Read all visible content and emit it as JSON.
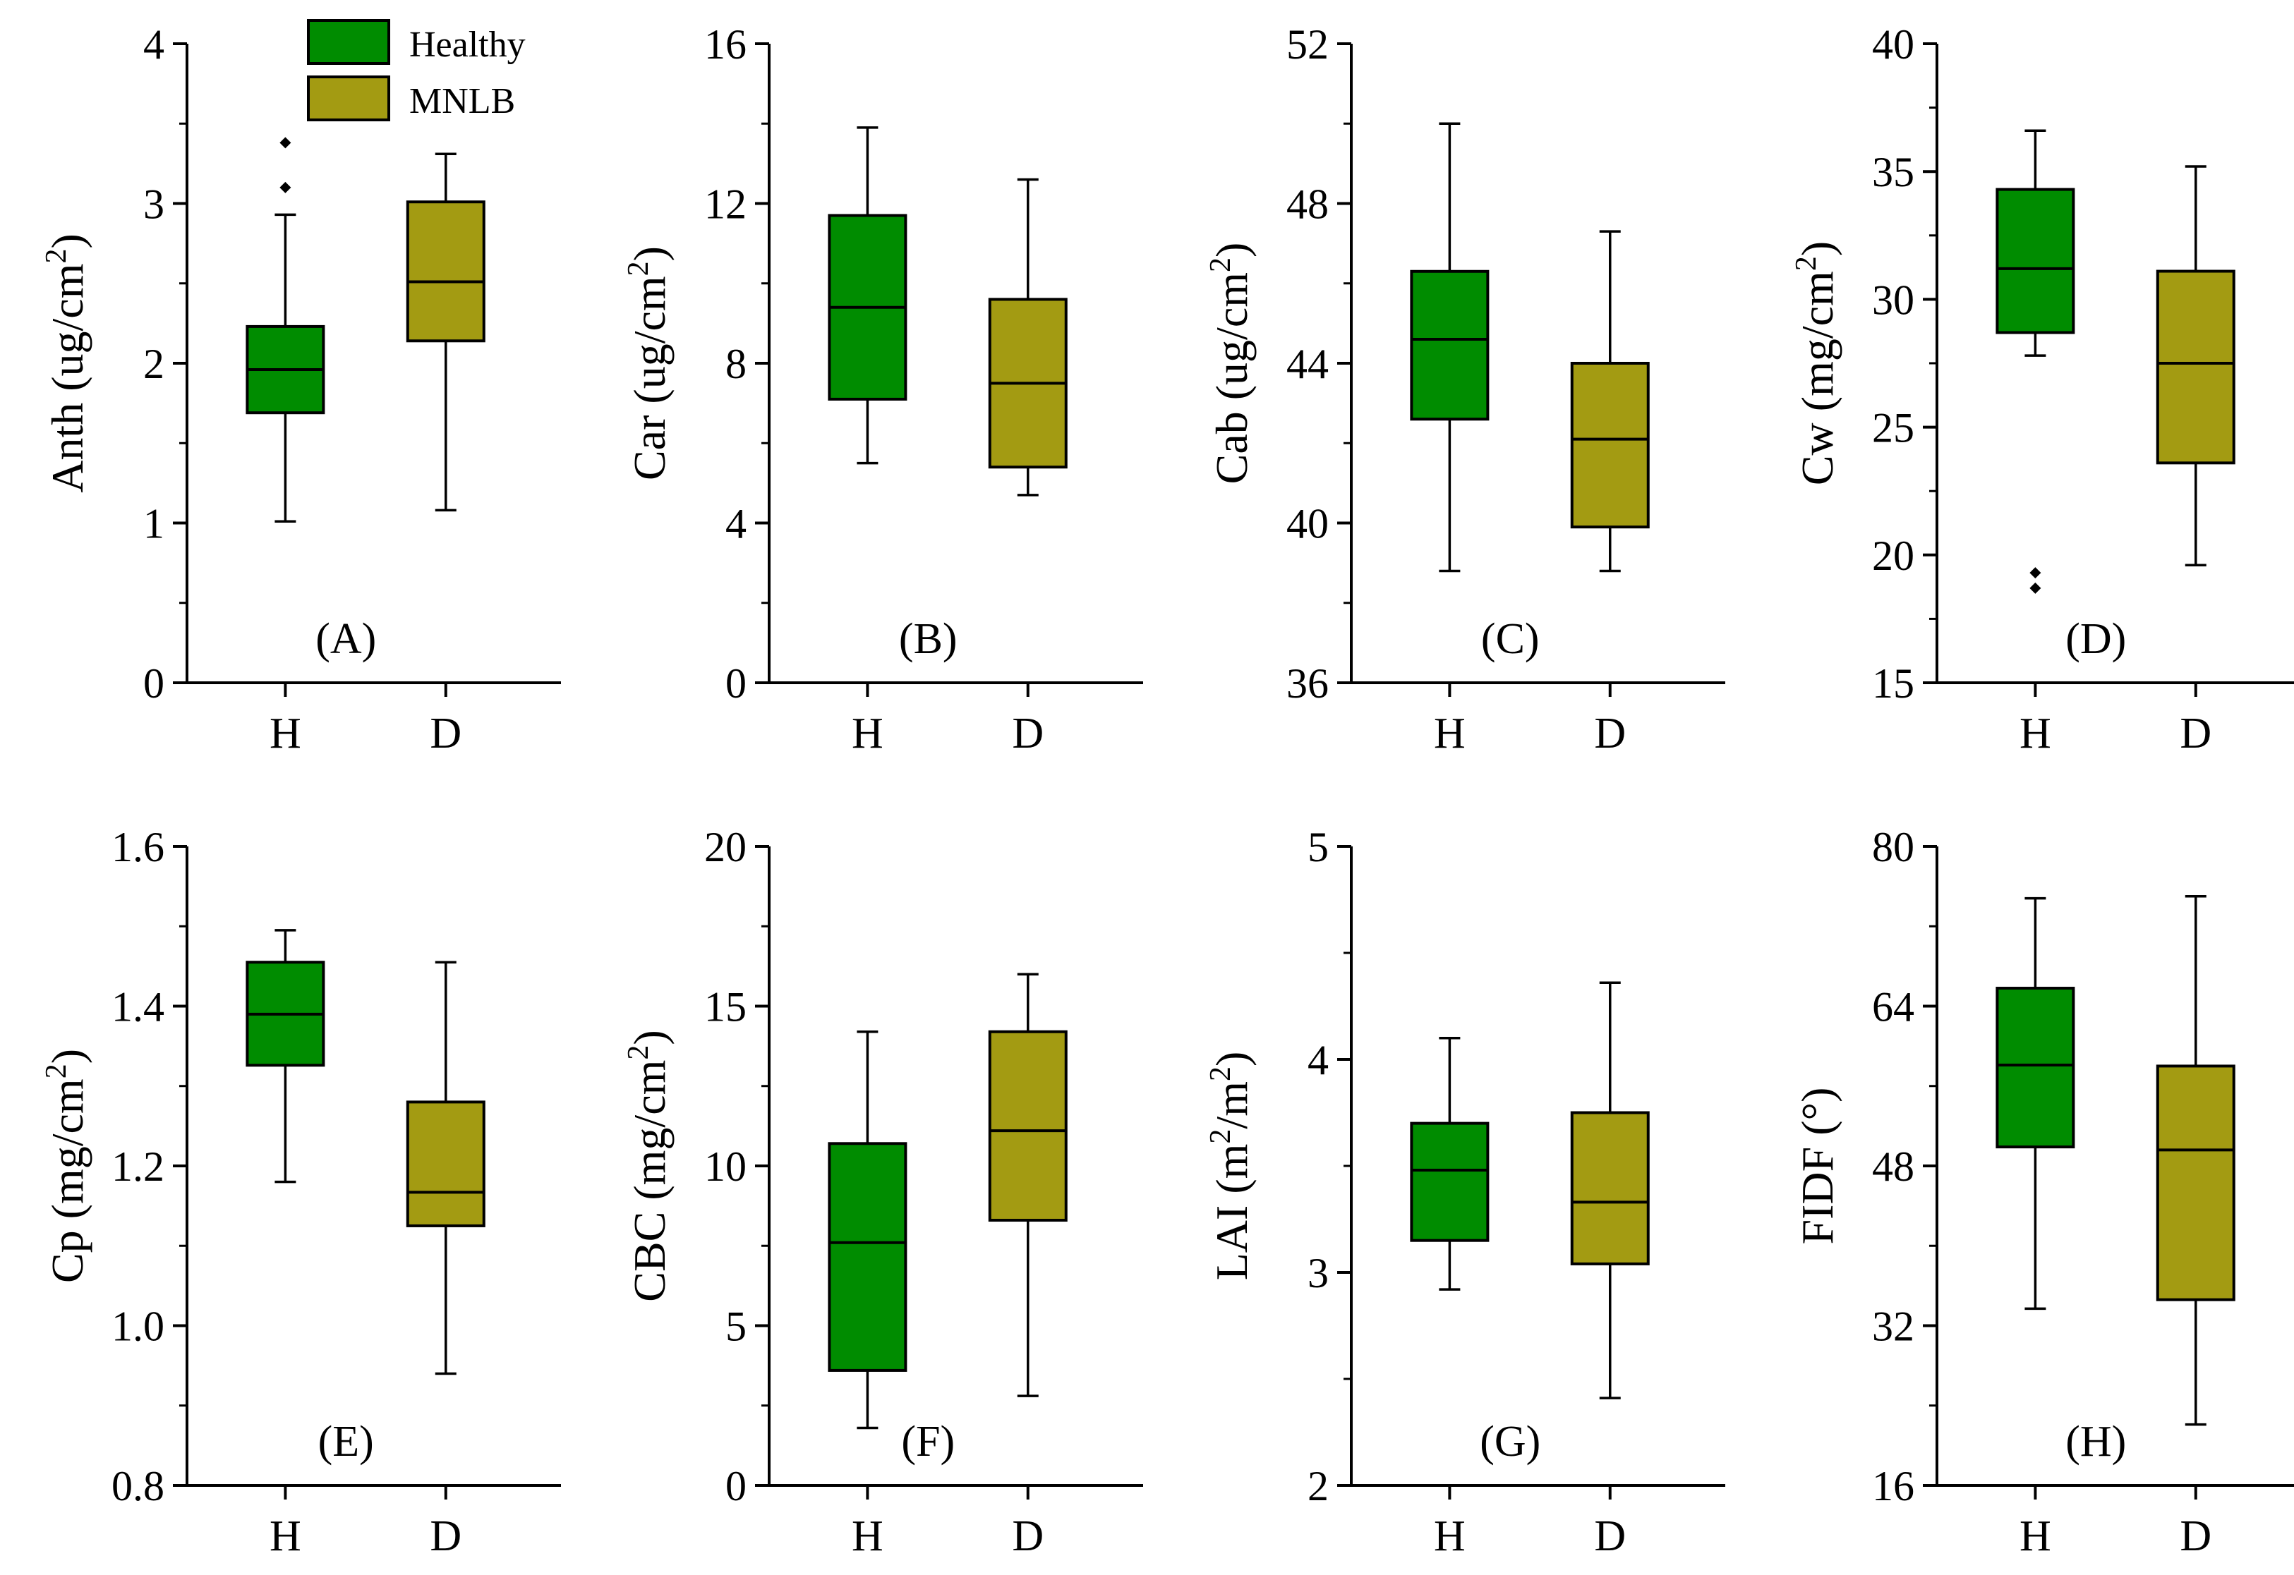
{
  "legend": {
    "entries": [
      {
        "label": "Healthy",
        "color": "#008c00"
      },
      {
        "label": "MNLB",
        "color": "#a39b12"
      }
    ]
  },
  "chart_data": [
    {
      "type": "box",
      "panel": "(A)",
      "ylabel": {
        "main": "Anth (ug/cm",
        "sup": "2",
        "end": ")"
      },
      "ylim": [
        0,
        4
      ],
      "yticks": [
        0,
        1,
        2,
        3,
        4
      ],
      "ytick_labels": [
        "0",
        "1",
        "2",
        "3",
        "4"
      ],
      "categories": [
        "H",
        "D"
      ],
      "boxes": [
        {
          "category": "H",
          "group": "Healthy",
          "min": 1.01,
          "q1": 1.69,
          "median": 1.96,
          "q3": 2.23,
          "max": 2.93,
          "outliers": [
            3.1,
            3.38
          ]
        },
        {
          "category": "D",
          "group": "MNLB",
          "min": 1.08,
          "q1": 2.14,
          "median": 2.51,
          "q3": 3.01,
          "max": 3.31,
          "outliers": []
        }
      ]
    },
    {
      "type": "box",
      "panel": "(B)",
      "ylabel": {
        "main": "Car (ug/cm",
        "sup": "2",
        "end": ")"
      },
      "ylim": [
        0,
        16
      ],
      "yticks": [
        0,
        4,
        8,
        12,
        16
      ],
      "ytick_labels": [
        "0",
        "4",
        "8",
        "12",
        "16"
      ],
      "categories": [
        "H",
        "D"
      ],
      "boxes": [
        {
          "category": "H",
          "group": "Healthy",
          "min": 5.5,
          "q1": 7.1,
          "median": 9.4,
          "q3": 11.7,
          "max": 13.9,
          "outliers": []
        },
        {
          "category": "D",
          "group": "MNLB",
          "min": 4.7,
          "q1": 5.4,
          "median": 7.5,
          "q3": 9.6,
          "max": 12.6,
          "outliers": []
        }
      ]
    },
    {
      "type": "box",
      "panel": "(C)",
      "ylabel": {
        "main": "Cab (ug/cm",
        "sup": "2",
        "end": ")"
      },
      "ylim": [
        36,
        52
      ],
      "yticks": [
        36,
        40,
        44,
        48,
        52
      ],
      "ytick_labels": [
        "36",
        "40",
        "44",
        "48",
        "52"
      ],
      "categories": [
        "H",
        "D"
      ],
      "boxes": [
        {
          "category": "H",
          "group": "Healthy",
          "min": 38.8,
          "q1": 42.6,
          "median": 44.6,
          "q3": 46.3,
          "max": 50.0,
          "outliers": []
        },
        {
          "category": "D",
          "group": "MNLB",
          "min": 38.8,
          "q1": 39.9,
          "median": 42.1,
          "q3": 44.0,
          "max": 47.3,
          "outliers": []
        }
      ]
    },
    {
      "type": "box",
      "panel": "(D)",
      "ylabel": {
        "main": "Cw (mg/cm",
        "sup": "2",
        "end": ")"
      },
      "ylim": [
        15,
        40
      ],
      "yticks": [
        15,
        20,
        25,
        30,
        35,
        40
      ],
      "ytick_labels": [
        "15",
        "20",
        "25",
        "30",
        "35",
        "40"
      ],
      "categories": [
        "H",
        "D"
      ],
      "boxes": [
        {
          "category": "H",
          "group": "Healthy",
          "min": 27.8,
          "q1": 28.7,
          "median": 31.2,
          "q3": 34.3,
          "max": 36.6,
          "outliers": [
            18.7,
            19.3
          ]
        },
        {
          "category": "D",
          "group": "MNLB",
          "min": 19.6,
          "q1": 23.6,
          "median": 27.5,
          "q3": 31.1,
          "max": 35.2,
          "outliers": []
        }
      ]
    },
    {
      "type": "box",
      "panel": "(E)",
      "ylabel": {
        "main": "Cp (mg/cm",
        "sup": "2",
        "end": ")"
      },
      "ylim": [
        0.8,
        1.6
      ],
      "yticks": [
        0.8,
        1.0,
        1.2,
        1.4,
        1.6
      ],
      "ytick_labels": [
        "0.8",
        "1.0",
        "1.2",
        "1.4",
        "1.6"
      ],
      "categories": [
        "H",
        "D"
      ],
      "boxes": [
        {
          "category": "H",
          "group": "Healthy",
          "min": 1.18,
          "q1": 1.326,
          "median": 1.39,
          "q3": 1.455,
          "max": 1.495,
          "outliers": []
        },
        {
          "category": "D",
          "group": "MNLB",
          "min": 0.94,
          "q1": 1.125,
          "median": 1.167,
          "q3": 1.28,
          "max": 1.455,
          "outliers": []
        }
      ]
    },
    {
      "type": "box",
      "panel": "(F)",
      "ylabel": {
        "main": "CBC (mg/cm",
        "sup": "2",
        "end": ")"
      },
      "ylim": [
        0,
        20
      ],
      "yticks": [
        0,
        5,
        10,
        15,
        20
      ],
      "ytick_labels": [
        "0",
        "5",
        "10",
        "15",
        "20"
      ],
      "categories": [
        "H",
        "D"
      ],
      "boxes": [
        {
          "category": "H",
          "group": "Healthy",
          "min": 1.8,
          "q1": 3.6,
          "median": 7.6,
          "q3": 10.7,
          "max": 14.2,
          "outliers": []
        },
        {
          "category": "D",
          "group": "MNLB",
          "min": 2.8,
          "q1": 8.3,
          "median": 11.1,
          "q3": 14.2,
          "max": 16.0,
          "outliers": []
        }
      ]
    },
    {
      "type": "box",
      "panel": "(G)",
      "ylabel": {
        "main": "LAI (m",
        "sup": "2",
        "mid": "/m",
        "sup2": "2",
        "end": ")"
      },
      "ylim": [
        2,
        5
      ],
      "yticks": [
        2,
        3,
        4,
        5
      ],
      "ytick_labels": [
        "2",
        "3",
        "4",
        "5"
      ],
      "categories": [
        "H",
        "D"
      ],
      "boxes": [
        {
          "category": "H",
          "group": "Healthy",
          "min": 2.92,
          "q1": 3.15,
          "median": 3.48,
          "q3": 3.7,
          "max": 4.1,
          "outliers": []
        },
        {
          "category": "D",
          "group": "MNLB",
          "min": 2.41,
          "q1": 3.04,
          "median": 3.33,
          "q3": 3.75,
          "max": 4.36,
          "outliers": []
        }
      ]
    },
    {
      "type": "box",
      "panel": "(H)",
      "ylabel": {
        "main": "FIDF (°)",
        "sup": "",
        "end": ""
      },
      "ylim": [
        16,
        80
      ],
      "yticks": [
        16,
        32,
        48,
        64,
        80
      ],
      "ytick_labels": [
        "16",
        "32",
        "48",
        "64",
        "80"
      ],
      "categories": [
        "H",
        "D"
      ],
      "boxes": [
        {
          "category": "H",
          "group": "Healthy",
          "min": 33.7,
          "q1": 49.9,
          "median": 58.1,
          "q3": 65.8,
          "max": 74.8,
          "outliers": []
        },
        {
          "category": "D",
          "group": "MNLB",
          "min": 22.1,
          "q1": 34.6,
          "median": 49.6,
          "q3": 58.0,
          "max": 75.0,
          "outliers": []
        }
      ]
    }
  ]
}
